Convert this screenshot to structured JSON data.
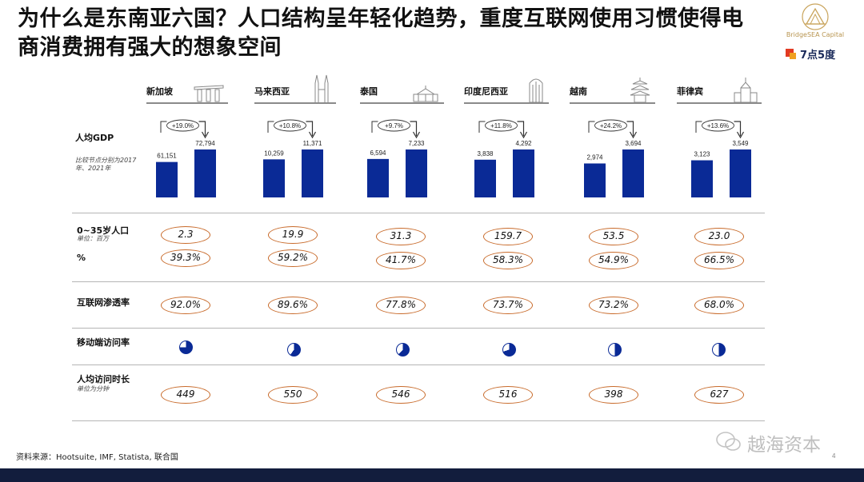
{
  "title": "为什么是东南亚六国？人口结构呈年轻化趋势，重度互联网使用习惯使得电商消费拥有强大的想象空间",
  "logo": {
    "name": "BridgeSEA Capital",
    "partner": "7点5度"
  },
  "labels": {
    "gdp": "人均GDP",
    "gdp_note": "比较节点分别为2017年、2021年",
    "pop": "0~35岁人口",
    "pop_unit": "单位：百万",
    "pct": "%",
    "internet": "互联网渗透率",
    "mobile": "移动端访问率",
    "time": "人均访问时长",
    "time_unit": "单位为分钟"
  },
  "chart_data": {
    "type": "bar",
    "categories": [
      "新加坡",
      "马来西亚",
      "泰国",
      "印度尼西亚",
      "越南",
      "菲律宾"
    ],
    "series": [
      {
        "values": [
          61151,
          10259,
          6594,
          3838,
          2974,
          3123
        ]
      },
      {
        "values": [
          72794,
          11371,
          7233,
          4292,
          3694,
          3549
        ]
      }
    ],
    "growth": [
      "+19.0%",
      "+10.8%",
      "+9.7%",
      "+11.8%",
      "+24.2%",
      "+13.6%"
    ],
    "display_values_2017": [
      "61,151",
      "10,259",
      "6,594",
      "3,838",
      "2,974",
      "3,123"
    ],
    "display_values_2021": [
      "72,794",
      "11,371",
      "7,233",
      "4,292",
      "3,694",
      "3,549"
    ]
  },
  "rows": {
    "pop": [
      "2.3",
      "19.9",
      "31.3",
      "159.7",
      "53.5",
      "23.0"
    ],
    "pct": [
      "39.3%",
      "59.2%",
      "41.7%",
      "58.3%",
      "54.9%",
      "66.5%"
    ],
    "internet": [
      "92.0%",
      "89.6%",
      "77.8%",
      "73.7%",
      "73.2%",
      "68.0%"
    ],
    "mobile_share": [
      0.75,
      0.6,
      0.62,
      0.7,
      0.5,
      0.5
    ],
    "time": [
      "449",
      "550",
      "546",
      "516",
      "398",
      "627"
    ]
  },
  "colors": {
    "bar": "#0a2a96",
    "pill_border": "#c86a2a",
    "band": "#121d3d"
  },
  "source": "资料来源：Hootsuite, IMF, Statista, 联合国",
  "watermark": "越海资本",
  "page_number": "4"
}
